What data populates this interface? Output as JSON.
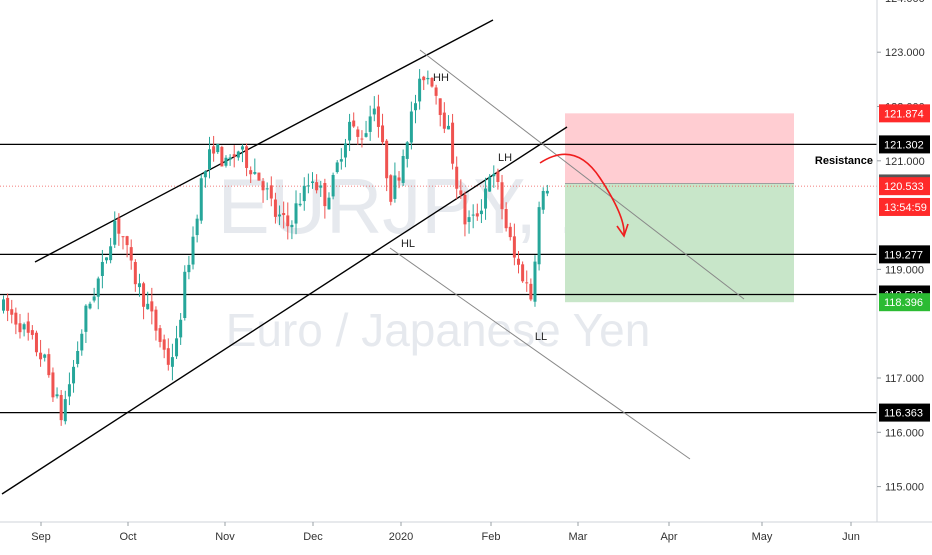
{
  "watermark": {
    "symbol": "EURJPY, 1D",
    "name": "Euro / Japanese Yen"
  },
  "colors": {
    "up": "#26a69a",
    "down": "#ef5350",
    "price_line": "#ef5350",
    "stop_zone": "#ffcdd2",
    "target_zone": "#c8e6c9",
    "axis_text": "#333333",
    "tag_dark": "#000000",
    "tag_gray": "#555555",
    "tag_red": "#ff2a2a",
    "tag_green": "#2bbb33"
  },
  "chart_data": {
    "type": "candlestick",
    "x_labels": [
      "Sep",
      "Oct",
      "Nov",
      "Dec",
      "2020",
      "Feb",
      "Mar",
      "Apr",
      "May",
      "Jun"
    ],
    "y_ticks": [
      "124.000",
      "123.000",
      "122.000",
      "121.000",
      "119.000",
      "117.000",
      "116.000",
      "115.000"
    ],
    "ylim": [
      114.8,
      124.4
    ],
    "price_tags": [
      {
        "value": 121.874,
        "label": "121.874",
        "style": "red"
      },
      {
        "value": 121.302,
        "label": "121.302",
        "style": "dark"
      },
      {
        "value": 120.583,
        "label": "120.583",
        "style": "gray"
      },
      {
        "value": 120.533,
        "label": "120.533",
        "style": "red"
      },
      {
        "value": 120.15,
        "label": "13:54:59",
        "style": "red"
      },
      {
        "value": 119.277,
        "label": "119.277",
        "style": "dark"
      },
      {
        "value": 118.538,
        "label": "118.538",
        "style": "dark"
      },
      {
        "value": 118.396,
        "label": "118.396",
        "style": "green"
      },
      {
        "value": 116.363,
        "label": "116.363",
        "style": "dark"
      }
    ],
    "horizontal_levels": [
      121.302,
      119.277,
      118.538,
      116.363
    ],
    "current_price": 120.533,
    "annotations": [
      {
        "text": "HH"
      },
      {
        "text": "LH"
      },
      {
        "text": "HL"
      },
      {
        "text": "LL"
      },
      {
        "text": "Resistance"
      }
    ],
    "trade": {
      "entry": 120.583,
      "stop": 121.874,
      "target": 118.396
    },
    "waypoints": [
      [
        0,
        118.3
      ],
      [
        4,
        118.0
      ],
      [
        10,
        117.3
      ],
      [
        14,
        116.3
      ],
      [
        17,
        117.2
      ],
      [
        20,
        118.2
      ],
      [
        24,
        119.0
      ],
      [
        27,
        119.9
      ],
      [
        29,
        119.6
      ],
      [
        31,
        119.0
      ],
      [
        35,
        118.3
      ],
      [
        38,
        117.7
      ],
      [
        40,
        117.3
      ],
      [
        42,
        117.6
      ],
      [
        44,
        118.8
      ],
      [
        46,
        119.6
      ],
      [
        48,
        120.6
      ],
      [
        51,
        121.3
      ],
      [
        54,
        120.9
      ],
      [
        57,
        121.2
      ],
      [
        60,
        120.9
      ],
      [
        63,
        120.6
      ],
      [
        66,
        120.0
      ],
      [
        69,
        119.8
      ],
      [
        72,
        120.3
      ],
      [
        75,
        120.7
      ],
      [
        78,
        120.3
      ],
      [
        80,
        120.6
      ],
      [
        82,
        121.2
      ],
      [
        84,
        121.7
      ],
      [
        86,
        121.4
      ],
      [
        88,
        121.6
      ],
      [
        90,
        122.1
      ],
      [
        92,
        121.2
      ],
      [
        94,
        120.4
      ],
      [
        96,
        120.8
      ],
      [
        98,
        121.5
      ],
      [
        100,
        122.1
      ],
      [
        102,
        122.6
      ],
      [
        104,
        122.5
      ],
      [
        106,
        122.0
      ],
      [
        108,
        121.5
      ],
      [
        110,
        120.6
      ],
      [
        112,
        119.9
      ],
      [
        114,
        119.9
      ],
      [
        116,
        120.2
      ],
      [
        118,
        120.8
      ],
      [
        120,
        120.5
      ],
      [
        122,
        119.8
      ],
      [
        124,
        119.2
      ],
      [
        126,
        118.9
      ],
      [
        128,
        118.5
      ],
      [
        130,
        120.1
      ],
      [
        132,
        120.55
      ]
    ]
  }
}
